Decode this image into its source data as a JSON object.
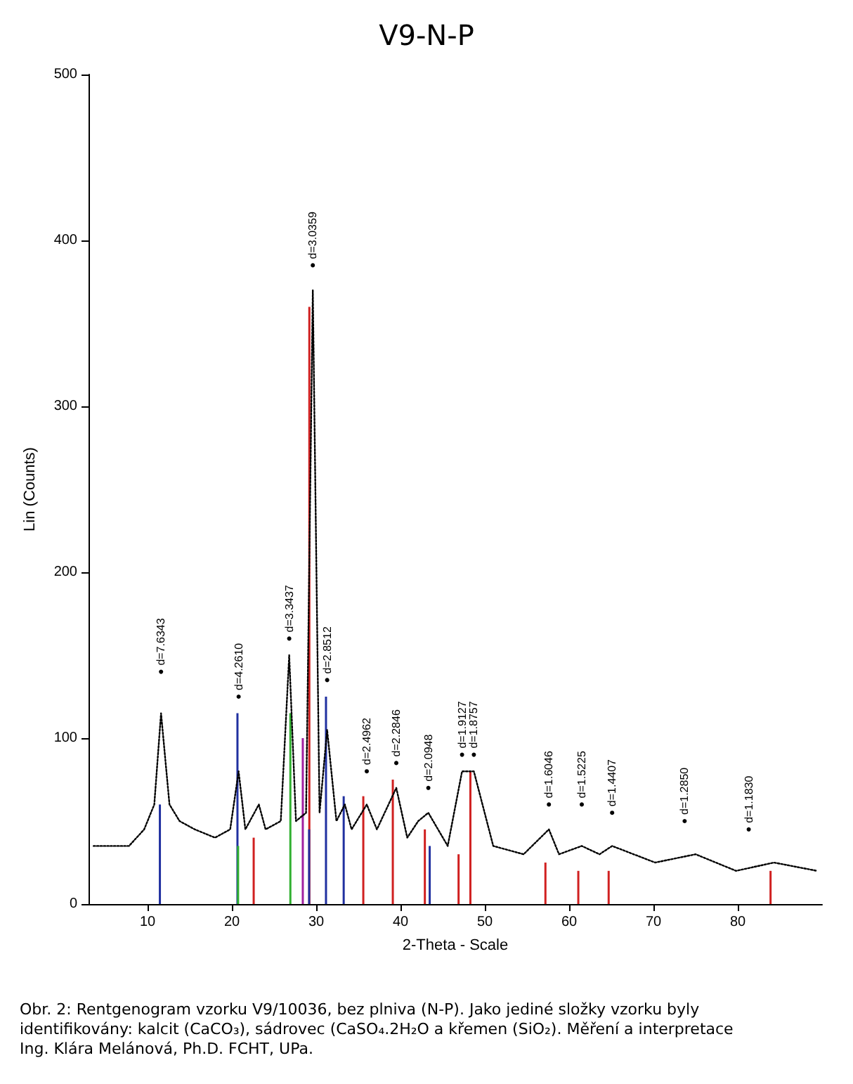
{
  "chart_data": {
    "type": "line",
    "title": "V9-N-P",
    "xlabel": "2-Theta - Scale",
    "ylabel": "Lin (Counts)",
    "xlim": [
      3,
      90
    ],
    "xticks": [
      10,
      20,
      30,
      40,
      50,
      60,
      70,
      80
    ],
    "ylim": [
      0,
      500
    ],
    "yticks": [
      0,
      100,
      200,
      300,
      400,
      500
    ],
    "marker": "none",
    "line_style": "dotted",
    "series": [
      {
        "type": "line",
        "color": "#000000",
        "x": [
          3.6,
          5.4,
          7.8,
          9.6,
          10.8,
          11.6,
          12.6,
          13.8,
          15.6,
          18.0,
          19.8,
          20.8,
          21.6,
          23.2,
          24.0,
          25.8,
          26.8,
          27.6,
          28.8,
          29.6,
          30.4,
          31.3,
          32.4,
          33.4,
          34.2,
          36.0,
          37.2,
          39.5,
          40.8,
          42.1,
          43.3,
          45.6,
          47.3,
          48.7,
          51.0,
          54.6,
          57.6,
          58.8,
          61.5,
          63.6,
          65.1,
          70.2,
          75.0,
          79.8,
          84.3,
          89.4
        ],
        "values": [
          35,
          35,
          35,
          45,
          60,
          115,
          60,
          50,
          45,
          40,
          45,
          80,
          45,
          60,
          45,
          50,
          150,
          50,
          55,
          370,
          55,
          105,
          50,
          60,
          45,
          60,
          45,
          70,
          40,
          50,
          55,
          35,
          80,
          80,
          35,
          30,
          45,
          30,
          35,
          30,
          35,
          25,
          30,
          20,
          25,
          20
        ]
      },
      {
        "type": "bar",
        "color": "#d02020",
        "x": [
          23.0,
          29.6,
          36.0,
          39.5,
          43.3,
          47.3,
          48.7,
          57.6,
          61.5,
          65.1,
          84.3
        ],
        "values": [
          40,
          360,
          65,
          75,
          45,
          30,
          80,
          25,
          20,
          20,
          20
        ]
      },
      {
        "type": "bar",
        "color": "#2030a0",
        "x": [
          11.6,
          20.8,
          29.3,
          31.3,
          33.4,
          43.6
        ],
        "values": [
          60,
          115,
          45,
          125,
          65,
          35
        ]
      },
      {
        "type": "bar",
        "color": "#30b030",
        "x": [
          20.6,
          26.8
        ],
        "values": [
          35,
          115
        ]
      },
      {
        "type": "bar",
        "color": "#a020a0",
        "x": [
          28.0
        ],
        "values": [
          100
        ]
      }
    ],
    "annotations": [
      {
        "text": "d=7.6343",
        "x": 11.6,
        "y": 140
      },
      {
        "text": "d=4.2610",
        "x": 20.8,
        "y": 125
      },
      {
        "text": "d=3.3437",
        "x": 26.8,
        "y": 160
      },
      {
        "text": "d=3.0359",
        "x": 29.6,
        "y": 385
      },
      {
        "text": "d=2.8512",
        "x": 31.3,
        "y": 135
      },
      {
        "text": "d=2.4962",
        "x": 36.0,
        "y": 80
      },
      {
        "text": "d=2.2846",
        "x": 39.5,
        "y": 85
      },
      {
        "text": "d=2.0948",
        "x": 43.3,
        "y": 70
      },
      {
        "text": "d=1.9127",
        "x": 47.3,
        "y": 90
      },
      {
        "text": "d=1.8757",
        "x": 48.7,
        "y": 90
      },
      {
        "text": "d=1.6046",
        "x": 57.6,
        "y": 60
      },
      {
        "text": "d=1.5225",
        "x": 61.5,
        "y": 60
      },
      {
        "text": "d=1.4407",
        "x": 65.1,
        "y": 55
      },
      {
        "text": "d=1.2850",
        "x": 73.7,
        "y": 50
      },
      {
        "text": "d=1.1830",
        "x": 81.3,
        "y": 45
      },
      "Obr. 2: Rentgenogram vzorku V9/10036, bez plniva (N-P). Jako jediné složky vzorku byly identifikovány: kalcit (CaCO₃), sádrovec (CaSO₄.2H₂O a křemen (SiO₂). Měření a interpretace Ing. Klára Melánová, Ph.D. FCHT, UPa."
    ]
  }
}
